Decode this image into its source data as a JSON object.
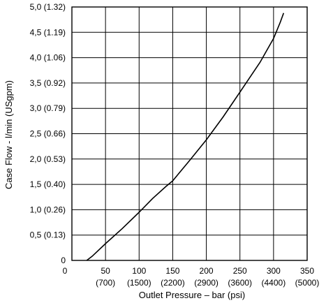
{
  "chart_data": {
    "type": "line",
    "xlabel": "Outlet Pressure – bar (psi)",
    "ylabel": "Case Flow - l/min (USgpm)",
    "xlim": [
      0,
      350
    ],
    "ylim": [
      0,
      5.0
    ],
    "grid": true,
    "x_ticks": [
      {
        "value": 0,
        "label": "0",
        "sub": ""
      },
      {
        "value": 50,
        "label": "50",
        "sub": "(700)"
      },
      {
        "value": 100,
        "label": "100",
        "sub": "(1500)"
      },
      {
        "value": 150,
        "label": "150",
        "sub": "(2200)"
      },
      {
        "value": 200,
        "label": "200",
        "sub": "(2900)"
      },
      {
        "value": 250,
        "label": "250",
        "sub": "(3600)"
      },
      {
        "value": 300,
        "label": "300",
        "sub": "(4400)"
      },
      {
        "value": 350,
        "label": "350",
        "sub": "(5000)"
      }
    ],
    "y_ticks": [
      {
        "value": 0,
        "label": "0"
      },
      {
        "value": 0.5,
        "label": "0,5 (0.13)"
      },
      {
        "value": 1.0,
        "label": "1,0 (0.26)"
      },
      {
        "value": 1.5,
        "label": "1,5 (0.40)"
      },
      {
        "value": 2.0,
        "label": "2,0 (0.53)"
      },
      {
        "value": 2.5,
        "label": "2,5 (0.66)"
      },
      {
        "value": 3.0,
        "label": "3,0 (0.79)"
      },
      {
        "value": 3.5,
        "label": "3,5 (0.92)"
      },
      {
        "value": 4.0,
        "label": "4,0 (1.06)"
      },
      {
        "value": 4.5,
        "label": "4,5 (1.19)"
      },
      {
        "value": 5.0,
        "label": "5,0 (1.32)"
      }
    ],
    "series": [
      {
        "x": [
          22,
          30,
          50,
          75,
          100,
          120,
          140,
          150,
          175,
          200,
          225,
          250,
          280,
          300,
          310,
          315
        ],
        "y": [
          0.0,
          0.08,
          0.33,
          0.63,
          0.95,
          1.22,
          1.46,
          1.57,
          1.97,
          2.38,
          2.83,
          3.32,
          3.91,
          4.38,
          4.7,
          4.88
        ]
      }
    ]
  }
}
